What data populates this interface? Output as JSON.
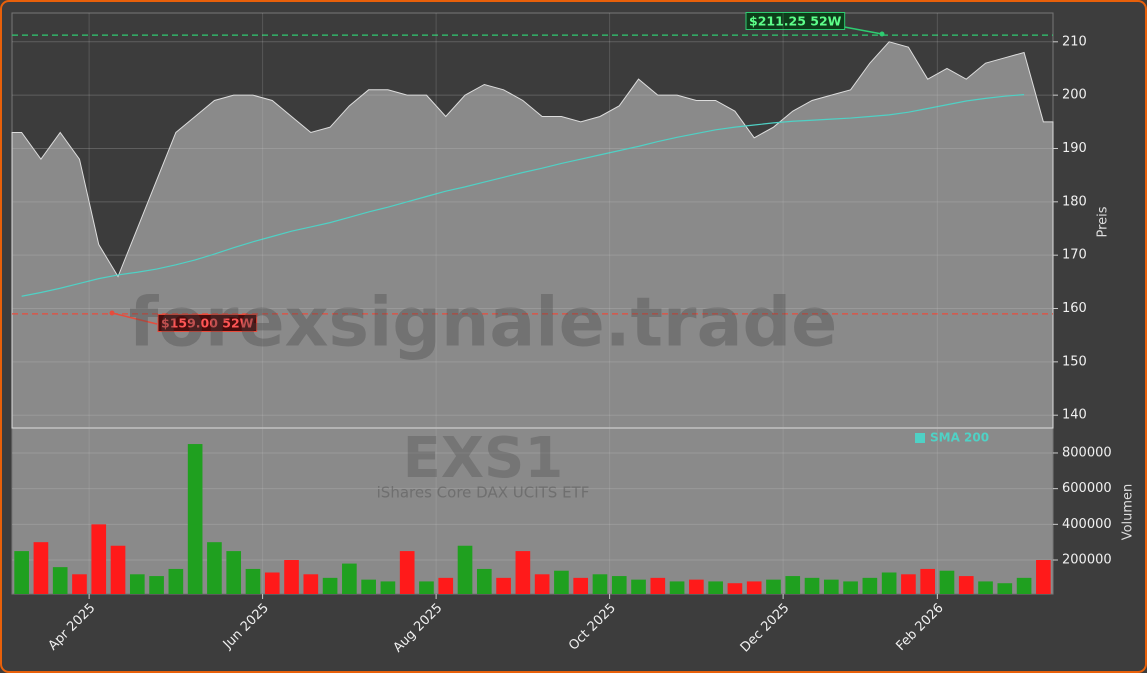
{
  "chart_data": [
    {
      "type": "area",
      "ylabel": "Preis",
      "watermark": "forexsignale.trade",
      "symbol": "EXS1",
      "subtitle": "iShares Core DAX UCITS ETF",
      "categories": [
        null,
        null,
        null,
        null,
        "Apr 2025",
        null,
        null,
        null,
        null,
        null,
        null,
        null,
        null,
        "Jun 2025",
        null,
        null,
        null,
        null,
        null,
        null,
        null,
        null,
        "Aug 2025",
        null,
        null,
        null,
        null,
        null,
        null,
        null,
        null,
        "Oct 2025",
        null,
        null,
        null,
        null,
        null,
        null,
        null,
        null,
        "Dec 2025",
        null,
        null,
        null,
        null,
        null,
        null,
        null,
        "Feb 2026",
        null,
        null,
        null,
        null,
        null
      ],
      "series": [
        {
          "color": "#8a8a8a",
          "values": [
            193,
            188,
            193,
            188,
            172,
            166,
            175,
            184,
            193,
            196,
            199,
            200,
            200,
            199,
            196,
            193,
            194,
            198,
            201,
            201,
            200,
            200,
            196,
            200,
            202,
            201,
            199,
            196,
            196,
            195,
            196,
            198,
            203,
            200,
            200,
            199,
            199,
            197,
            192,
            194,
            197,
            199,
            200,
            201,
            206,
            210,
            209,
            203,
            205,
            203,
            206,
            207,
            208,
            195
          ]
        },
        {
          "name": "SMA 200",
          "color": "#4fd1c5",
          "values": [
            162.3,
            163,
            163.8,
            164.7,
            165.6,
            166.3,
            166.8,
            167.4,
            168.2,
            169.1,
            170.2,
            171.4,
            172.5,
            173.5,
            174.5,
            175.3,
            176.1,
            177.1,
            178.1,
            179.0,
            180.0,
            181.0,
            182.0,
            182.8,
            183.7,
            184.6,
            185.5,
            186.3,
            187.2,
            188.0,
            188.8,
            189.6,
            190.4,
            191.3,
            192.1,
            192.8,
            193.5,
            194.0,
            194.4,
            194.8,
            195.1,
            195.3,
            195.5,
            195.7,
            196.0,
            196.3,
            196.8,
            197.5,
            198.2,
            198.9,
            199.4,
            199.8,
            200.1,
            null
          ]
        }
      ],
      "hlines": [
        {
          "value": 211.25,
          "label": "$211.25 52W",
          "color": "#2ecc71"
        },
        {
          "value": 159.0,
          "label": "$159.00 52W",
          "color": "#e74c3c"
        }
      ],
      "ylim": [
        137.6,
        215.4
      ],
      "yticks": [
        140,
        150,
        160,
        170,
        180,
        190,
        200,
        210
      ],
      "grid": true
    },
    {
      "type": "bar",
      "ylabel": "Volumen",
      "up_color": "#1fa01f",
      "down_color": "#ff1a1a",
      "values": [
        250000,
        300000,
        160000,
        120000,
        400000,
        280000,
        120000,
        110000,
        150000,
        850000,
        300000,
        250000,
        150000,
        130000,
        200000,
        120000,
        100000,
        180000,
        90000,
        80000,
        250000,
        80000,
        100000,
        280000,
        150000,
        100000,
        250000,
        120000,
        140000,
        100000,
        120000,
        110000,
        90000,
        100000,
        80000,
        90000,
        80000,
        70000,
        80000,
        90000,
        110000,
        100000,
        90000,
        80000,
        100000,
        130000,
        120000,
        150000,
        140000,
        110000,
        80000,
        70000,
        100000,
        200000
      ],
      "ylim": [
        9500,
        940000
      ],
      "yticks": [
        200000,
        400000,
        600000,
        800000
      ],
      "grid": true
    }
  ]
}
